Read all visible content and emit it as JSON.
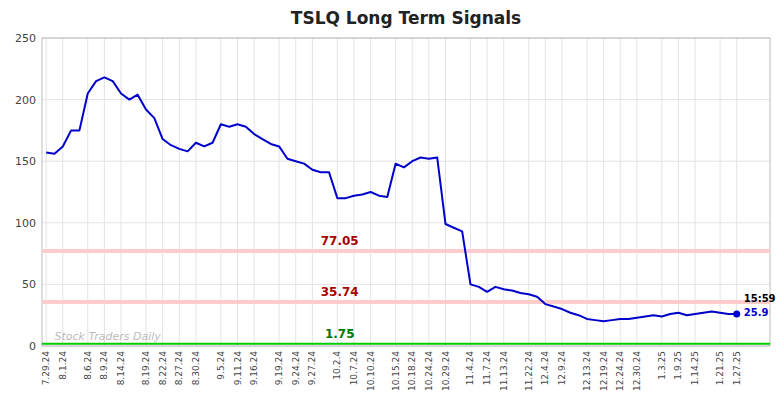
{
  "chart_data": {
    "type": "line",
    "title": "TSLQ Long Term Signals",
    "categories": [
      "7.29.24",
      null,
      "8.1.24",
      null,
      null,
      "8.6.24",
      null,
      "8.9.24",
      null,
      "8.14.24",
      null,
      null,
      "8.19.24",
      null,
      "8.22.24",
      null,
      "8.27.24",
      null,
      "8.30.24",
      null,
      null,
      "9.5.24",
      null,
      "9.11.24",
      null,
      "9.16.24",
      null,
      null,
      "9.19.24",
      null,
      "9.24.24",
      null,
      "9.27.24",
      null,
      null,
      "10.2.4",
      null,
      "10.7.24",
      null,
      "10.10.24",
      null,
      null,
      "10.15.24",
      null,
      "10.18.24",
      null,
      "10.24.24",
      null,
      "10.29.24",
      null,
      null,
      "11.4.24",
      null,
      "11.7.24",
      null,
      "11.13.24",
      null,
      null,
      "11.22.24",
      null,
      "12.4.24",
      null,
      "12.9.24",
      null,
      null,
      "12.13.24",
      null,
      "12.19.24",
      null,
      "12.24.24",
      null,
      "12.30.24",
      null,
      null,
      "1.3.25",
      null,
      "1.9.25",
      null,
      "1.14.25",
      null,
      null,
      "1.21.25",
      null,
      "1.27.25"
    ],
    "values": [
      157,
      156,
      162,
      175,
      175,
      205,
      215,
      218,
      215,
      205,
      200,
      204,
      192,
      185,
      168,
      163,
      160,
      158,
      165,
      162,
      165,
      180,
      178,
      180,
      178,
      172,
      168,
      164,
      162,
      152,
      150,
      148,
      143,
      141,
      141,
      120,
      120,
      122,
      123,
      125,
      122,
      121,
      148,
      145,
      150,
      153,
      152,
      153,
      99,
      96,
      93,
      50,
      48,
      44,
      48,
      46,
      45,
      43,
      42,
      40,
      34,
      32,
      30,
      27,
      25,
      22,
      21,
      20,
      21,
      22,
      22,
      23,
      24,
      25,
      24,
      26,
      27,
      25,
      26,
      27,
      28,
      27,
      26,
      25.9
    ],
    "color": "#0000cc",
    "ylim": [
      0,
      250
    ],
    "yticks": [
      0,
      50,
      100,
      150,
      200,
      250
    ],
    "grid": true,
    "reference_lines": [
      {
        "value": 77.05,
        "label": "77.05",
        "color": "#ffcccc",
        "label_color": "#aa0000"
      },
      {
        "value": 35.74,
        "label": "35.74",
        "color": "#ffcccc",
        "label_color": "#aa0000"
      },
      {
        "value": 1.75,
        "label": "1.75",
        "color": "#00cc00",
        "label_color": "#007700"
      }
    ],
    "end_label": {
      "text": "15:59",
      "value": 25.9
    },
    "watermark": "Stock Traders Daily"
  }
}
